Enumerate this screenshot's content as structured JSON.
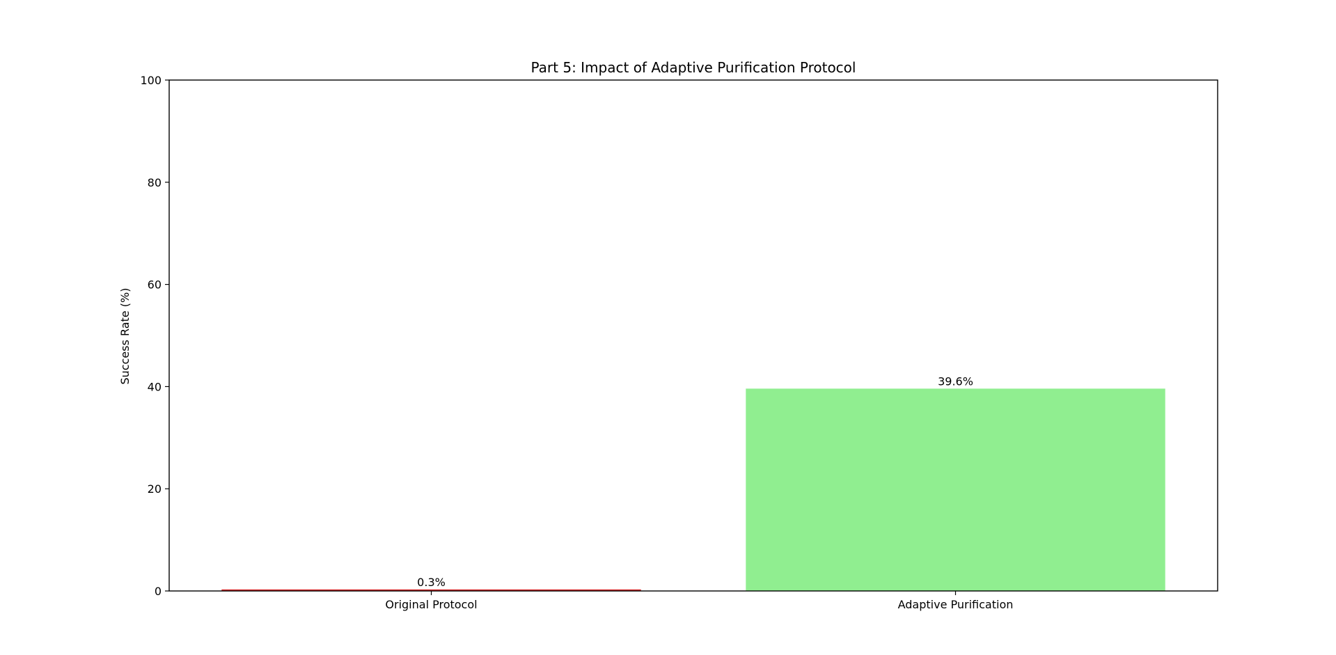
{
  "chart_data": {
    "type": "bar",
    "title": "Part 5: Impact of Adaptive Purification Protocol",
    "xlabel": "",
    "ylabel": "Success Rate (%)",
    "categories": [
      "Original Protocol",
      "Adaptive Purification"
    ],
    "values": [
      0.3,
      39.6
    ],
    "data_labels": [
      "0.3%",
      "39.6%"
    ],
    "bar_colors": [
      "#d62728",
      "#90ee90"
    ],
    "ylim": [
      0,
      100
    ],
    "yticks": [
      0,
      20,
      40,
      60,
      80,
      100
    ],
    "grid": false,
    "legend": "none"
  }
}
